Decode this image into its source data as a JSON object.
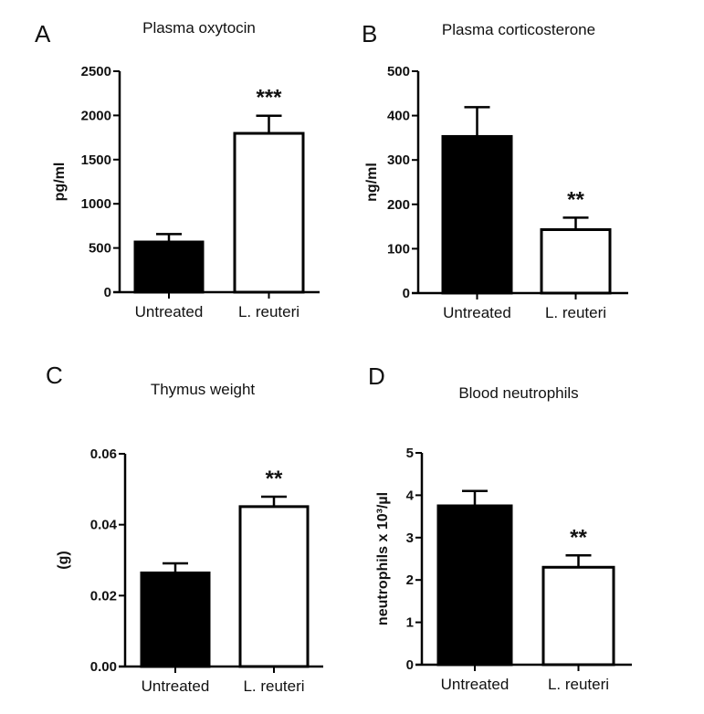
{
  "chart_data": [
    {
      "panel": "A",
      "type": "bar",
      "title": "Plasma oxytocin",
      "ylabel": "pg/ml",
      "xlabel": "",
      "categories": [
        "Untreated",
        "L. reuteri"
      ],
      "values": [
        568,
        1797
      ],
      "errors": [
        89,
        200
      ],
      "significance": [
        "",
        "***"
      ],
      "ylim": [
        0,
        2500
      ],
      "yticks": [
        0,
        500,
        1000,
        1500,
        2000,
        2500
      ],
      "ytick_labels": [
        "0",
        "500",
        "1000",
        "1500",
        "2000",
        "2500"
      ],
      "fills": [
        "#000000",
        "#ffffff"
      ],
      "grid": false
    },
    {
      "panel": "B",
      "type": "bar",
      "title": "Plasma corticosterone",
      "ylabel": "ng/ml",
      "xlabel": "",
      "categories": [
        "Untreated",
        "L. reuteri"
      ],
      "values": [
        353,
        143
      ],
      "errors": [
        66,
        27
      ],
      "significance": [
        "",
        "**"
      ],
      "ylim": [
        0,
        500
      ],
      "yticks": [
        0,
        100,
        200,
        300,
        400,
        500
      ],
      "ytick_labels": [
        "0",
        "100",
        "200",
        "300",
        "400",
        "500"
      ],
      "fills": [
        "#000000",
        "#ffffff"
      ],
      "grid": false
    },
    {
      "panel": "C",
      "type": "bar",
      "title": "Thymus weight",
      "ylabel": "(g)",
      "xlabel": "",
      "categories": [
        "Untreated",
        "L. reuteri"
      ],
      "values": [
        0.0264,
        0.0451
      ],
      "errors": [
        0.0027,
        0.0028
      ],
      "significance": [
        "",
        "**"
      ],
      "ylim": [
        0,
        0.06
      ],
      "yticks": [
        0,
        0.02,
        0.04,
        0.06
      ],
      "ytick_labels": [
        "0.00",
        "0.02",
        "0.04",
        "0.06"
      ],
      "fills": [
        "#000000",
        "#ffffff"
      ],
      "grid": false
    },
    {
      "panel": "D",
      "type": "bar",
      "title": "Blood neutrophils",
      "ylabel": "neutrophils x 10³/µl",
      "xlabel": "",
      "categories": [
        "Untreated",
        "L. reuteri"
      ],
      "values": [
        3.75,
        2.3
      ],
      "errors": [
        0.35,
        0.28
      ],
      "significance": [
        "",
        "**"
      ],
      "ylim": [
        0,
        5
      ],
      "yticks": [
        0,
        1,
        2,
        3,
        4,
        5
      ],
      "ytick_labels": [
        "0",
        "1",
        "2",
        "3",
        "4",
        "5"
      ],
      "fills": [
        "#000000",
        "#ffffff"
      ],
      "grid": false
    }
  ]
}
